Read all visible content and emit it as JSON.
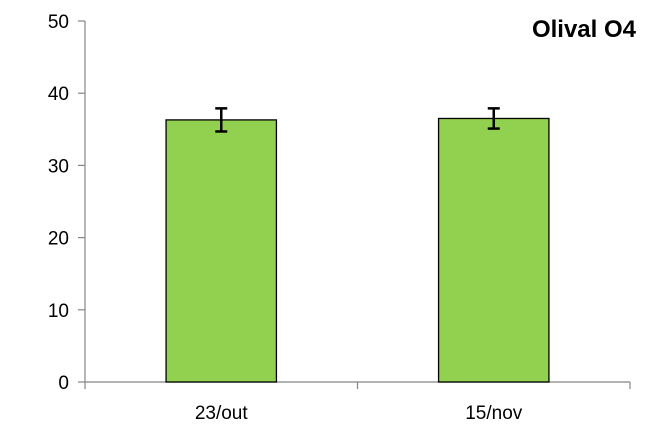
{
  "chart_data": {
    "type": "bar",
    "title": "Olival O4",
    "xlabel": "",
    "ylabel": "",
    "categories": [
      "23/out",
      "15/nov"
    ],
    "values": [
      36.3,
      36.5
    ],
    "error": [
      1.6,
      1.4
    ],
    "ylim": [
      0,
      50
    ],
    "yticks": [
      "0",
      "10",
      "20",
      "30",
      "40",
      "50"
    ],
    "grid": false,
    "legend": "none",
    "bar_color": "#92d050",
    "bar_edge_color": "#000000",
    "error_bar_color": "#000000"
  }
}
